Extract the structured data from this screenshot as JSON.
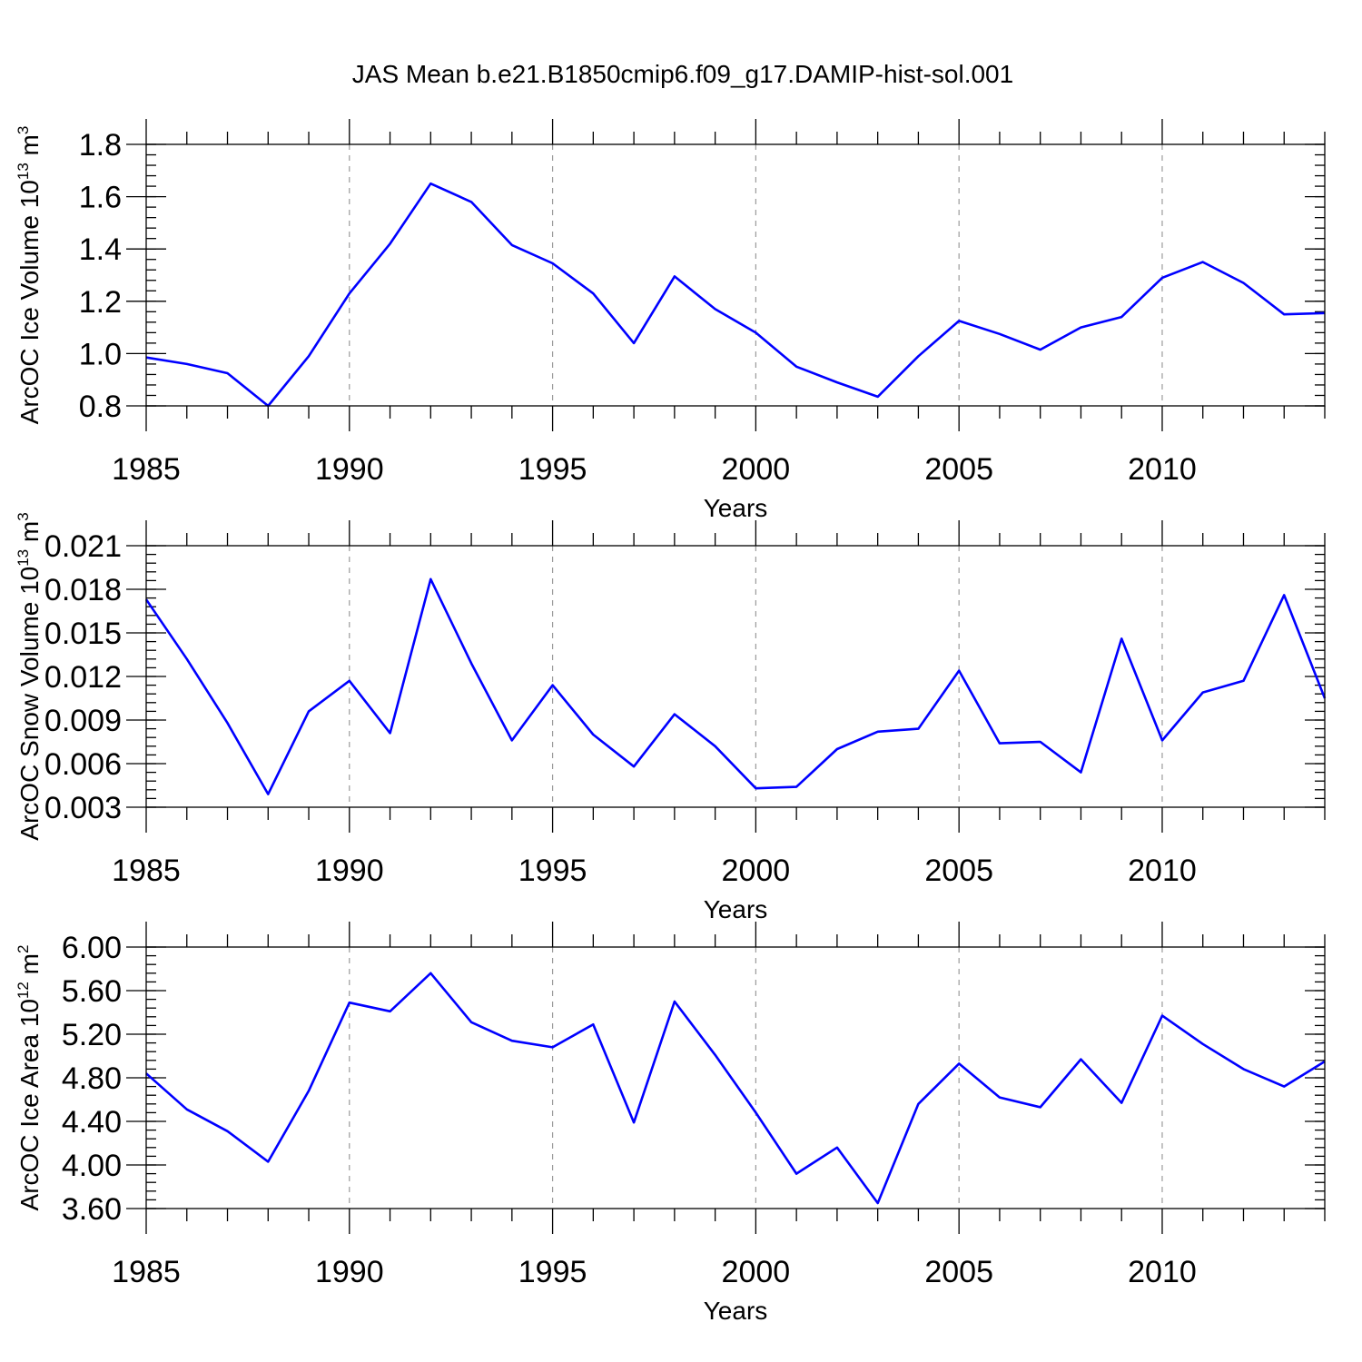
{
  "figure_title": "JAS Mean b.e21.B1850cmip6.f09_g17.DAMIP-hist-sol.001",
  "colors": {
    "line": "#0000ff",
    "grid": "#9a9a9a",
    "axes": "#000000"
  },
  "chart_data": [
    {
      "type": "line",
      "title": "",
      "xlabel": "Years",
      "ylabel": "ArcOC Ice Volume 10",
      "ylabel_sup": "13",
      "ylabel_unit": " m",
      "ylabel_unit_sup": "3",
      "xlim": [
        1985,
        2014
      ],
      "ylim": [
        0.8,
        1.8
      ],
      "y_tick_values": [
        0.8,
        1.0,
        1.2,
        1.4,
        1.6,
        1.8
      ],
      "y_tick_labels": [
        "0.8",
        "1.0",
        "1.2",
        "1.4",
        "1.6",
        "1.8"
      ],
      "y_minor_step": 0.04,
      "x_tick_values": [
        1985,
        1990,
        1995,
        2000,
        2005,
        2010
      ],
      "x_tick_labels": [
        "1985",
        "1990",
        "1995",
        "2000",
        "2005",
        "2010"
      ],
      "grid": "x-major dashed",
      "x": [
        1985,
        1986,
        1987,
        1988,
        1989,
        1990,
        1991,
        1992,
        1993,
        1994,
        1995,
        1996,
        1997,
        1998,
        1999,
        2000,
        2001,
        2002,
        2003,
        2004,
        2005,
        2006,
        2007,
        2008,
        2009,
        2010,
        2011,
        2012,
        2013,
        2014
      ],
      "series": [
        {
          "name": "ArcOC Ice Volume",
          "values": [
            0.985,
            0.96,
            0.925,
            0.8,
            0.99,
            1.23,
            1.42,
            1.65,
            1.58,
            1.415,
            1.345,
            1.23,
            1.04,
            1.295,
            1.17,
            1.08,
            0.95,
            0.89,
            0.835,
            0.99,
            1.125,
            1.075,
            1.015,
            1.1,
            1.14,
            1.29,
            1.35,
            1.27,
            1.15,
            1.155
          ]
        }
      ]
    },
    {
      "type": "line",
      "title": "",
      "xlabel": "Years",
      "ylabel": "ArcOC Snow Volume 10",
      "ylabel_sup": "13",
      "ylabel_unit": " m",
      "ylabel_unit_sup": "3",
      "xlim": [
        1985,
        2014
      ],
      "ylim": [
        0.003,
        0.021
      ],
      "y_tick_values": [
        0.003,
        0.006,
        0.009,
        0.012,
        0.015,
        0.018,
        0.021
      ],
      "y_tick_labels": [
        "0.003",
        "0.006",
        "0.009",
        "0.012",
        "0.015",
        "0.018",
        "0.021"
      ],
      "y_minor_step": 0.0006,
      "x_tick_values": [
        1985,
        1990,
        1995,
        2000,
        2005,
        2010
      ],
      "x_tick_labels": [
        "1985",
        "1990",
        "1995",
        "2000",
        "2005",
        "2010"
      ],
      "grid": "x-major dashed",
      "x": [
        1985,
        1986,
        1987,
        1988,
        1989,
        1990,
        1991,
        1992,
        1993,
        1994,
        1995,
        1996,
        1997,
        1998,
        1999,
        2000,
        2001,
        2002,
        2003,
        2004,
        2005,
        2006,
        2007,
        2008,
        2009,
        2010,
        2011,
        2012,
        2013,
        2014
      ],
      "series": [
        {
          "name": "ArcOC Snow Volume",
          "values": [
            0.0173,
            0.0132,
            0.0088,
            0.0039,
            0.0096,
            0.0117,
            0.0081,
            0.0187,
            0.0129,
            0.0076,
            0.0114,
            0.008,
            0.0058,
            0.0094,
            0.0072,
            0.0043,
            0.0044,
            0.007,
            0.0082,
            0.0084,
            0.0124,
            0.0074,
            0.0075,
            0.0054,
            0.0146,
            0.0076,
            0.0109,
            0.0117,
            0.0176,
            0.0105
          ]
        }
      ]
    },
    {
      "type": "line",
      "title": "",
      "xlabel": "Years",
      "ylabel": "ArcOC Ice Area 10",
      "ylabel_sup": "12",
      "ylabel_unit": " m",
      "ylabel_unit_sup": "2",
      "xlim": [
        1985,
        2014
      ],
      "ylim": [
        3.6,
        6.0
      ],
      "y_tick_values": [
        3.6,
        4.0,
        4.4,
        4.8,
        5.2,
        5.6,
        6.0
      ],
      "y_tick_labels": [
        "3.60",
        "4.00",
        "4.40",
        "4.80",
        "5.20",
        "5.60",
        "6.00"
      ],
      "y_minor_step": 0.08,
      "x_tick_values": [
        1985,
        1990,
        1995,
        2000,
        2005,
        2010
      ],
      "x_tick_labels": [
        "1985",
        "1990",
        "1995",
        "2000",
        "2005",
        "2010"
      ],
      "grid": "x-major dashed",
      "x": [
        1985,
        1986,
        1987,
        1988,
        1989,
        1990,
        1991,
        1992,
        1993,
        1994,
        1995,
        1996,
        1997,
        1998,
        1999,
        2000,
        2001,
        2002,
        2003,
        2004,
        2005,
        2006,
        2007,
        2008,
        2009,
        2010,
        2011,
        2012,
        2013,
        2014
      ],
      "series": [
        {
          "name": "ArcOC Ice Area",
          "values": [
            4.84,
            4.51,
            4.31,
            4.03,
            4.68,
            5.49,
            5.41,
            5.76,
            5.31,
            5.14,
            5.08,
            5.29,
            4.39,
            5.5,
            5.01,
            4.48,
            3.92,
            4.16,
            3.65,
            4.56,
            4.93,
            4.62,
            4.53,
            4.97,
            4.57,
            5.37,
            5.11,
            4.88,
            4.72,
            4.95
          ]
        }
      ]
    }
  ]
}
